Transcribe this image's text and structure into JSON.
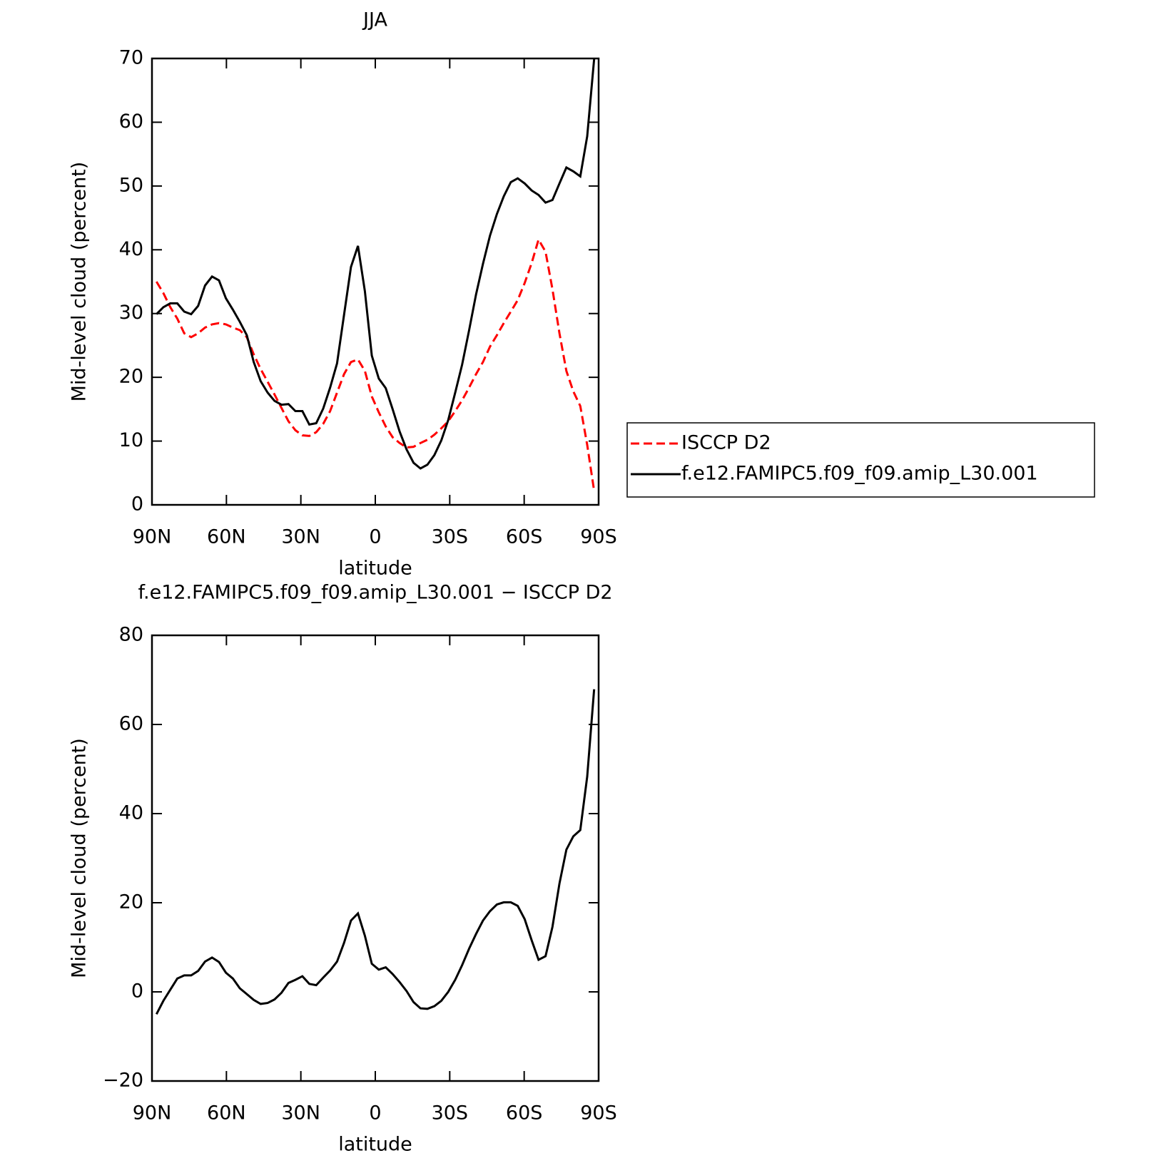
{
  "chart_data": [
    {
      "type": "line",
      "title": "JJA",
      "xlabel": "latitude",
      "ylabel": "Mid-level cloud (percent)",
      "xlim": [
        90,
        -90
      ],
      "xticks": [
        {
          "value": 90,
          "label": "90N"
        },
        {
          "value": 60,
          "label": "60N"
        },
        {
          "value": 30,
          "label": "30N"
        },
        0,
        {
          "value": -30,
          "label": "30S"
        },
        {
          "value": -60,
          "label": "60S"
        },
        {
          "value": -90,
          "label": "90S"
        }
      ],
      "ylim": [
        0,
        70
      ],
      "yticks": [
        0,
        10,
        20,
        30,
        40,
        50,
        60,
        70
      ],
      "x": [
        88.2,
        85.4,
        82.6,
        79.8,
        77.0,
        74.2,
        71.4,
        68.6,
        65.8,
        63.0,
        60.2,
        57.4,
        54.6,
        51.8,
        49.0,
        46.2,
        43.4,
        40.6,
        37.8,
        35.0,
        32.2,
        29.4,
        26.6,
        23.8,
        21.0,
        18.2,
        15.4,
        12.6,
        9.8,
        7.0,
        4.2,
        1.4,
        -1.4,
        -4.2,
        -7.0,
        -9.8,
        -12.6,
        -15.4,
        -18.2,
        -21.0,
        -23.8,
        -26.6,
        -29.4,
        -32.2,
        -35.0,
        -37.8,
        -40.6,
        -43.4,
        -46.2,
        -49.0,
        -51.8,
        -54.6,
        -57.4,
        -60.2,
        -63.0,
        -65.8,
        -68.6,
        -71.4,
        -74.2,
        -77.0,
        -79.8,
        -82.6,
        -85.4,
        -88.2
      ],
      "legend": "right",
      "series": [
        {
          "name": "ISCCP D2",
          "color": "#ff0000",
          "dashed": true,
          "values": [
            35,
            33.2,
            31,
            29.2,
            26.9,
            26.3,
            26.9,
            27.8,
            28.3,
            28.5,
            28.3,
            27.8,
            27.4,
            26.3,
            23.6,
            21.3,
            19.3,
            17.3,
            15.2,
            13.1,
            11.7,
            10.9,
            10.8,
            11.4,
            12.7,
            14.7,
            17.6,
            20.5,
            22.4,
            22.8,
            21,
            17,
            14.5,
            12.3,
            10.6,
            9.7,
            9,
            9.1,
            9.7,
            10.2,
            11,
            12,
            13.1,
            14.7,
            16.4,
            18.4,
            20.5,
            22.4,
            24.8,
            26.6,
            28.5,
            30.3,
            32.1,
            34.8,
            37.9,
            41.6,
            39.7,
            33.8,
            26.9,
            21,
            17.8,
            15.5,
            9.4,
            2.2
          ]
        },
        {
          "name": "f.e12.FAMIPC5.f09_f09.amip_L30.001",
          "color": "#000000",
          "dashed": false,
          "values": [
            29.9,
            31,
            31.6,
            31.6,
            30.3,
            29.9,
            31.2,
            34.4,
            35.8,
            35.2,
            32.4,
            30.6,
            28.7,
            26.6,
            22.4,
            19.4,
            17.6,
            16.3,
            15.7,
            15.8,
            14.7,
            14.7,
            12.6,
            12.8,
            15.1,
            18.4,
            22.2,
            29.8,
            37.3,
            40.6,
            33.5,
            23.4,
            19.8,
            18.3,
            15,
            11.5,
            8.7,
            6.6,
            5.7,
            6.3,
            7.8,
            10.1,
            13.3,
            17.6,
            22,
            27.4,
            33,
            37.8,
            42.2,
            45.6,
            48.4,
            50.6,
            51.2,
            50.4,
            49.3,
            48.6,
            47.4,
            47.8,
            50.4,
            52.9,
            52.3,
            51.5,
            57.8,
            69.9
          ]
        }
      ]
    },
    {
      "type": "line",
      "title": "f.e12.FAMIPC5.f09_f09.amip_L30.001 − ISCCP D2",
      "xlabel": "latitude",
      "ylabel": "Mid-level cloud (percent)",
      "xlim": [
        90,
        -90
      ],
      "xticks": [
        {
          "value": 90,
          "label": "90N"
        },
        {
          "value": 60,
          "label": "60N"
        },
        {
          "value": 30,
          "label": "30N"
        },
        0,
        {
          "value": -30,
          "label": "30S"
        },
        {
          "value": -60,
          "label": "60S"
        },
        {
          "value": -90,
          "label": "90S"
        }
      ],
      "ylim": [
        -20,
        80
      ],
      "yticks": [
        {
          "value": -20,
          "label": "−20"
        },
        0,
        20,
        40,
        60,
        80
      ],
      "x": [
        88.2,
        85.4,
        82.6,
        79.8,
        77.0,
        74.2,
        71.4,
        68.6,
        65.8,
        63.0,
        60.2,
        57.4,
        54.6,
        51.8,
        49.0,
        46.2,
        43.4,
        40.6,
        37.8,
        35.0,
        32.2,
        29.4,
        26.6,
        23.8,
        21.0,
        18.2,
        15.4,
        12.6,
        9.8,
        7.0,
        4.2,
        1.4,
        -1.4,
        -4.2,
        -7.0,
        -9.8,
        -12.6,
        -15.4,
        -18.2,
        -21.0,
        -23.8,
        -26.6,
        -29.4,
        -32.2,
        -35.0,
        -37.8,
        -40.6,
        -43.4,
        -46.2,
        -49.0,
        -51.8,
        -54.6,
        -57.4,
        -60.2,
        -63.0,
        -65.8,
        -68.6,
        -71.4,
        -74.2,
        -77.0,
        -79.8,
        -82.6,
        -85.4,
        -88.2
      ],
      "series": [
        {
          "color": "#000000",
          "dashed": false,
          "values": [
            -5,
            -2,
            0.5,
            3,
            3.7,
            3.7,
            4.7,
            6.8,
            7.7,
            6.7,
            4.3,
            3,
            0.8,
            -0.5,
            -1.8,
            -2.7,
            -2.5,
            -1.7,
            -0.2,
            2,
            2.7,
            3.5,
            1.8,
            1.5,
            3.2,
            4.8,
            6.8,
            11,
            16,
            17.6,
            12.6,
            6.3,
            5,
            5.5,
            4,
            2.2,
            0.2,
            -2.3,
            -3.7,
            -3.8,
            -3.2,
            -2,
            0,
            2.7,
            6,
            9.7,
            13,
            16,
            18.1,
            19.6,
            20.1,
            20.1,
            19.3,
            16.3,
            11.6,
            7.2,
            8,
            14.6,
            24.3,
            31.9,
            34.9,
            36.3,
            48.3,
            67.9
          ]
        }
      ]
    }
  ]
}
